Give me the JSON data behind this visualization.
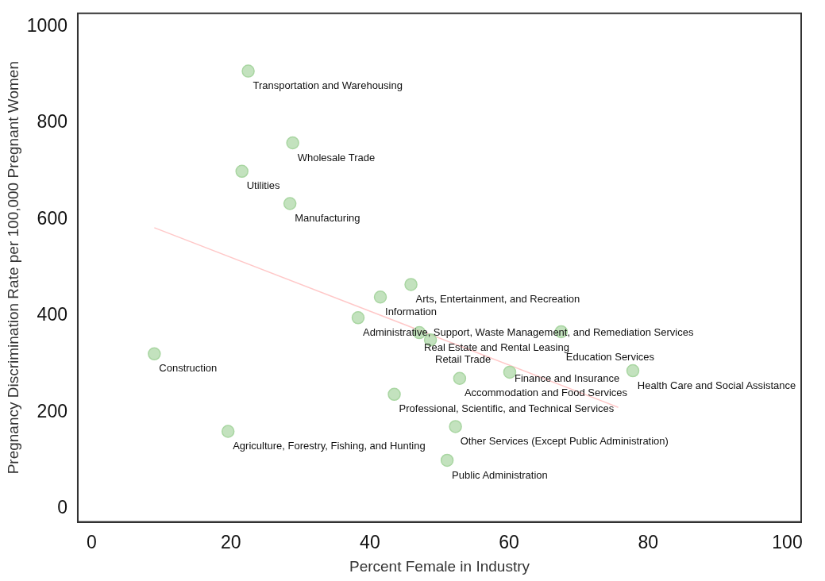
{
  "chart_data": {
    "type": "scatter",
    "xlabel": "Percent Female in Industry",
    "ylabel": "Pregnancy Discrimination Rate per 100,000 Pregnant Women",
    "xlim": [
      -2,
      102
    ],
    "ylim": [
      -28,
      1028
    ],
    "xticks": [
      0,
      20,
      40,
      60,
      80,
      100
    ],
    "yticks": [
      0,
      200,
      400,
      600,
      800,
      1000
    ],
    "grid": false,
    "legend": false,
    "series": [
      {
        "color": "#a9d6a2",
        "marker": "circle",
        "x": [
          22.5,
          28.9,
          21.6,
          28.5,
          45.9,
          41.5,
          38.3,
          47.1,
          48.7,
          67.5,
          52.9,
          60.1,
          77.8,
          43.5,
          52.3,
          51.1,
          9.0,
          19.6
        ],
        "values": [
          908,
          759,
          700,
          633,
          465,
          439,
          396,
          365,
          350,
          367,
          270,
          283,
          286,
          237,
          170,
          100,
          321,
          160
        ]
      },
      {
        "type": "line",
        "color": "#ffc8c8",
        "x": [
          9.0,
          75.7
        ],
        "values": [
          583,
          210
        ]
      }
    ],
    "annotations": [
      {
        "text": "Transportation and Warehousing",
        "x": 22.5,
        "y": 908
      },
      {
        "text": "Wholesale Trade",
        "x": 28.9,
        "y": 759
      },
      {
        "text": "Utilities",
        "x": 21.6,
        "y": 700
      },
      {
        "text": "Manufacturing",
        "x": 28.5,
        "y": 633
      },
      {
        "text": "Arts, Entertainment, and Recreation",
        "x": 45.9,
        "y": 465
      },
      {
        "text": "Information",
        "x": 41.5,
        "y": 439
      },
      {
        "text": "Administrative, Support, Waste Management, and Remediation Services",
        "x": 38.3,
        "y": 396
      },
      {
        "text": "Real Estate and Rental Leasing",
        "x": 47.1,
        "y": 365
      },
      {
        "text": "Retail Trade",
        "x": 48.7,
        "y": 350
      },
      {
        "text": "Education Services",
        "x": 67.5,
        "y": 367
      },
      {
        "text": "Accommodation and Food Services",
        "x": 52.9,
        "y": 270
      },
      {
        "text": "Finance and Insurance",
        "x": 60.1,
        "y": 283
      },
      {
        "text": "Health Care and Social Assistance",
        "x": 77.8,
        "y": 286
      },
      {
        "text": "Professional, Scientific, and Technical Services",
        "x": 43.5,
        "y": 237
      },
      {
        "text": "Other Services (Except Public Administration)",
        "x": 52.3,
        "y": 170
      },
      {
        "text": "Public Administration",
        "x": 51.1,
        "y": 100
      },
      {
        "text": "Construction",
        "x": 9.0,
        "y": 321
      },
      {
        "text": "Agriculture, Forestry, Fishing, and Hunting",
        "x": 19.6,
        "y": 160
      }
    ]
  }
}
